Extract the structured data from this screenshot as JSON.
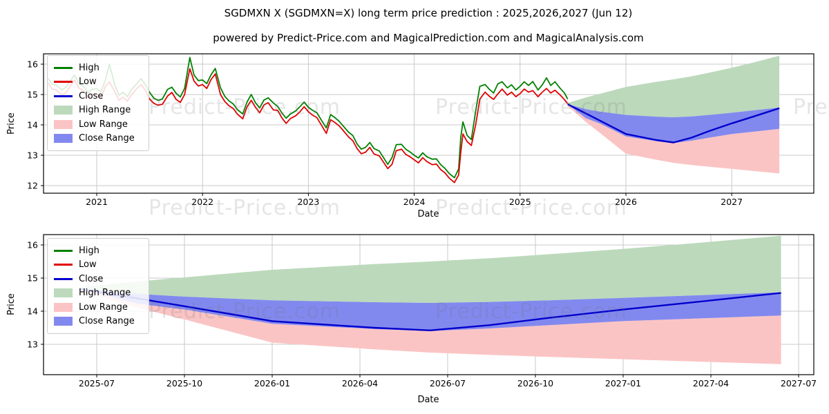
{
  "title": "SGDMXN X (SGDMXN=X) long term price prediction : 2025,2026,2027 (Jun 12)",
  "subtitle": "powered by Predict-Price.com and MagicalPrediction.com and MagicalAnalysis.com",
  "watermark_text": "Predict-Price.com",
  "colors": {
    "high_line": "#008000",
    "low_line": "#e00000",
    "close_line": "#0000cc",
    "high_range_fill": "#bcd9bc",
    "low_range_fill": "#fbc4c4",
    "close_range_fill": "#8289ee",
    "grid": "#c9c9c9",
    "axis_box": "#000000",
    "tick_text": "#000000"
  },
  "legend": {
    "items": [
      {
        "label": "High",
        "swatch": "line",
        "color": "#008000"
      },
      {
        "label": "Low",
        "swatch": "line",
        "color": "#e00000"
      },
      {
        "label": "Close",
        "swatch": "line",
        "color": "#0000cc"
      },
      {
        "label": "High Range",
        "swatch": "patch",
        "color": "#bcd9bc"
      },
      {
        "label": "Low Range",
        "swatch": "patch",
        "color": "#fbc4c4"
      },
      {
        "label": "Close Range",
        "swatch": "patch",
        "color": "#8289ee"
      }
    ]
  },
  "chart_data": [
    {
      "type": "line+band",
      "name": "history-and-forecast",
      "xlabel": "Date",
      "ylabel": "Price",
      "grid": true,
      "legend_position": "upper-left",
      "x_ticks": {
        "labels": [
          "2021",
          "2022",
          "2023",
          "2024",
          "2025",
          "2026",
          "2027"
        ],
        "values": [
          2021,
          2022,
          2023,
          2024,
          2025,
          2026,
          2027
        ]
      },
      "y_ticks": {
        "labels": [
          "12",
          "13",
          "14",
          "15",
          "16"
        ],
        "values": [
          12,
          13,
          14,
          15,
          16
        ]
      },
      "xlim": [
        2020.497,
        2027.775
      ],
      "ylim": [
        11.75,
        16.34
      ],
      "historical": {
        "x": [
          2020.54,
          2020.58,
          2020.62,
          2020.67,
          2020.71,
          2020.75,
          2020.79,
          2020.83,
          2020.88,
          2020.92,
          2020.96,
          2021.0,
          2021.04,
          2021.08,
          2021.12,
          2021.17,
          2021.21,
          2021.25,
          2021.29,
          2021.33,
          2021.38,
          2021.42,
          2021.46,
          2021.5,
          2021.54,
          2021.58,
          2021.62,
          2021.67,
          2021.71,
          2021.75,
          2021.79,
          2021.83,
          2021.88,
          2021.92,
          2021.96,
          2022.0,
          2022.04,
          2022.08,
          2022.12,
          2022.17,
          2022.21,
          2022.25,
          2022.29,
          2022.33,
          2022.38,
          2022.42,
          2022.46,
          2022.5,
          2022.54,
          2022.58,
          2022.62,
          2022.67,
          2022.71,
          2022.75,
          2022.79,
          2022.83,
          2022.88,
          2022.92,
          2022.96,
          2023.0,
          2023.04,
          2023.08,
          2023.12,
          2023.17,
          2023.21,
          2023.25,
          2023.29,
          2023.33,
          2023.38,
          2023.42,
          2023.46,
          2023.5,
          2023.54,
          2023.58,
          2023.62,
          2023.67,
          2023.71,
          2023.75,
          2023.79,
          2023.83,
          2023.88,
          2023.92,
          2023.96,
          2024.0,
          2024.04,
          2024.08,
          2024.12,
          2024.17,
          2024.21,
          2024.25,
          2024.29,
          2024.33,
          2024.38,
          2024.42,
          2024.44,
          2024.46,
          2024.5,
          2024.54,
          2024.58,
          2024.62,
          2024.67,
          2024.71,
          2024.75,
          2024.79,
          2024.83,
          2024.88,
          2024.92,
          2024.96,
          2025.0,
          2025.04,
          2025.08,
          2025.12,
          2025.17,
          2025.21,
          2025.25,
          2025.29,
          2025.33,
          2025.38,
          2025.42,
          2025.45
        ],
        "high": [
          15.53,
          15.34,
          15.3,
          15.15,
          15.24,
          15.44,
          15.64,
          15.37,
          15.26,
          15.06,
          15.18,
          15.19,
          15.1,
          15.45,
          16.0,
          15.32,
          14.98,
          15.07,
          14.93,
          15.18,
          15.36,
          15.52,
          15.32,
          15.07,
          14.88,
          14.81,
          14.85,
          15.17,
          15.24,
          15.04,
          14.92,
          15.2,
          16.22,
          15.64,
          15.46,
          15.48,
          15.36,
          15.65,
          15.86,
          15.22,
          14.94,
          14.79,
          14.69,
          14.5,
          14.36,
          14.75,
          15.0,
          14.73,
          14.56,
          14.82,
          14.89,
          14.72,
          14.61,
          14.39,
          14.22,
          14.36,
          14.46,
          14.6,
          14.75,
          14.58,
          14.48,
          14.4,
          14.17,
          13.9,
          14.34,
          14.24,
          14.12,
          13.96,
          13.76,
          13.65,
          13.37,
          13.2,
          13.26,
          13.42,
          13.22,
          13.14,
          12.92,
          12.7,
          12.92,
          13.35,
          13.36,
          13.2,
          13.11,
          13.0,
          12.91,
          13.08,
          12.95,
          12.87,
          12.88,
          12.69,
          12.57,
          12.4,
          12.26,
          12.55,
          13.6,
          14.1,
          13.65,
          13.52,
          14.45,
          15.27,
          15.33,
          15.17,
          15.05,
          15.35,
          15.42,
          15.22,
          15.32,
          15.15,
          15.27,
          15.42,
          15.3,
          15.43,
          15.15,
          15.32,
          15.55,
          15.3,
          15.42,
          15.2,
          15.05,
          14.85
        ],
        "low": [
          15.38,
          15.18,
          15.14,
          14.99,
          15.06,
          15.27,
          15.48,
          15.22,
          15.11,
          14.9,
          15.02,
          15.02,
          14.88,
          15.26,
          15.42,
          15.1,
          14.81,
          14.91,
          14.78,
          15.0,
          15.2,
          15.33,
          15.14,
          14.85,
          14.71,
          14.65,
          14.68,
          14.95,
          15.07,
          14.84,
          14.74,
          15.0,
          15.85,
          15.44,
          15.28,
          15.33,
          15.2,
          15.49,
          15.68,
          15.0,
          14.77,
          14.63,
          14.54,
          14.35,
          14.2,
          14.59,
          14.81,
          14.58,
          14.4,
          14.66,
          14.73,
          14.49,
          14.48,
          14.23,
          14.05,
          14.21,
          14.3,
          14.43,
          14.6,
          14.43,
          14.32,
          14.24,
          14.01,
          13.72,
          14.17,
          14.08,
          13.97,
          13.81,
          13.6,
          13.48,
          13.22,
          13.05,
          13.1,
          13.26,
          13.04,
          12.98,
          12.77,
          12.56,
          12.7,
          13.15,
          13.2,
          13.03,
          12.95,
          12.85,
          12.75,
          12.92,
          12.79,
          12.69,
          12.71,
          12.53,
          12.42,
          12.25,
          12.1,
          12.35,
          13.1,
          13.7,
          13.45,
          13.32,
          14.0,
          14.85,
          15.08,
          14.94,
          14.84,
          15.02,
          15.18,
          14.98,
          15.08,
          14.93,
          15.03,
          15.18,
          15.08,
          15.13,
          14.93,
          15.08,
          15.2,
          15.05,
          15.14,
          14.98,
          14.83,
          14.7
        ]
      },
      "forecast": {
        "x": [
          2025.45,
          2025.62,
          2025.75,
          2026.0,
          2026.29,
          2026.45,
          2026.62,
          2026.79,
          2027.0,
          2027.21,
          2027.45
        ],
        "close": [
          14.68,
          14.38,
          14.15,
          13.7,
          13.5,
          13.42,
          13.58,
          13.8,
          14.05,
          14.28,
          14.55
        ],
        "close_hi": [
          14.68,
          14.52,
          14.44,
          14.33,
          14.27,
          14.25,
          14.28,
          14.33,
          14.4,
          14.48,
          14.57
        ],
        "close_lo": [
          14.68,
          14.22,
          14.05,
          13.62,
          13.46,
          13.4,
          13.48,
          13.58,
          13.7,
          13.78,
          13.87
        ],
        "high_hi": [
          14.72,
          14.9,
          15.02,
          15.25,
          15.42,
          15.5,
          15.6,
          15.72,
          15.88,
          16.06,
          16.28
        ],
        "low_lo": [
          14.62,
          14.1,
          13.75,
          13.05,
          12.85,
          12.75,
          12.68,
          12.62,
          12.55,
          12.48,
          12.4
        ]
      }
    },
    {
      "type": "line+band",
      "name": "forecast-detail",
      "xlabel": "Date",
      "ylabel": "Price",
      "grid": true,
      "legend_position": "upper-left",
      "x_ticks": {
        "labels": [
          "2025-07",
          "2025-10",
          "2026-01",
          "2026-04",
          "2026-07",
          "2026-10",
          "2027-01",
          "2027-04",
          "2027-07"
        ],
        "values": [
          2025.5,
          2025.75,
          2026.0,
          2026.25,
          2026.5,
          2026.75,
          2027.0,
          2027.25,
          2027.5
        ]
      },
      "y_ticks": {
        "labels": [
          "13",
          "14",
          "15",
          "16"
        ],
        "values": [
          13,
          14,
          15,
          16
        ]
      },
      "xlim": [
        2025.318,
        2027.953
      ],
      "ylim": [
        12.08,
        16.31
      ],
      "forecast": {
        "x": [
          2025.45,
          2025.62,
          2025.75,
          2026.0,
          2026.29,
          2026.45,
          2026.62,
          2026.79,
          2027.0,
          2027.21,
          2027.45
        ],
        "close": [
          14.68,
          14.38,
          14.15,
          13.7,
          13.5,
          13.42,
          13.58,
          13.8,
          14.05,
          14.28,
          14.55
        ],
        "close_hi": [
          14.68,
          14.52,
          14.44,
          14.33,
          14.27,
          14.25,
          14.28,
          14.33,
          14.4,
          14.48,
          14.57
        ],
        "close_lo": [
          14.68,
          14.22,
          14.05,
          13.62,
          13.46,
          13.4,
          13.48,
          13.58,
          13.7,
          13.78,
          13.87
        ],
        "high_hi": [
          14.72,
          14.9,
          15.02,
          15.25,
          15.42,
          15.5,
          15.6,
          15.72,
          15.88,
          16.06,
          16.28
        ],
        "low_lo": [
          14.62,
          14.1,
          13.75,
          13.05,
          12.85,
          12.75,
          12.68,
          12.62,
          12.55,
          12.48,
          12.4
        ]
      }
    }
  ]
}
